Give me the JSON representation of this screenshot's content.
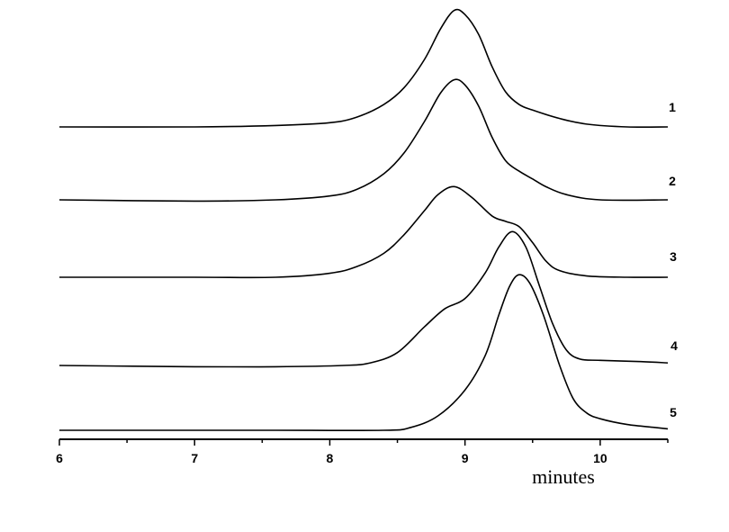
{
  "chart_data": {
    "type": "line",
    "title": "",
    "xlabel": "minutes",
    "ylabel": "",
    "xlim": [
      6,
      10.5
    ],
    "x_ticks": [
      6,
      7,
      8,
      9,
      10
    ],
    "x_ticks_minor": [
      6.5,
      7.5,
      8.5,
      9.5,
      10.5
    ],
    "y_ticks": [],
    "grid": false,
    "legend": "none",
    "y_axis_shown": false,
    "stacked_offset_traces": true,
    "series": [
      {
        "name": "1",
        "color": "#000000",
        "points": [
          [
            6.0,
            1.0
          ],
          [
            7.0,
            1.0
          ],
          [
            7.6,
            1.01
          ],
          [
            8.0,
            1.03
          ],
          [
            8.2,
            1.07
          ],
          [
            8.4,
            1.16
          ],
          [
            8.55,
            1.28
          ],
          [
            8.7,
            1.48
          ],
          [
            8.82,
            1.7
          ],
          [
            8.92,
            1.83
          ],
          [
            9.0,
            1.8
          ],
          [
            9.1,
            1.66
          ],
          [
            9.2,
            1.43
          ],
          [
            9.3,
            1.25
          ],
          [
            9.4,
            1.16
          ],
          [
            9.5,
            1.12
          ],
          [
            9.7,
            1.06
          ],
          [
            9.9,
            1.02
          ],
          [
            10.2,
            1.0
          ],
          [
            10.5,
            1.0
          ]
        ]
      },
      {
        "name": "2",
        "color": "#000000",
        "points": [
          [
            6.0,
            1.0
          ],
          [
            7.0,
            0.99
          ],
          [
            7.6,
            1.0
          ],
          [
            8.0,
            1.03
          ],
          [
            8.2,
            1.08
          ],
          [
            8.4,
            1.2
          ],
          [
            8.55,
            1.36
          ],
          [
            8.7,
            1.6
          ],
          [
            8.82,
            1.82
          ],
          [
            8.92,
            1.92
          ],
          [
            9.0,
            1.88
          ],
          [
            9.1,
            1.72
          ],
          [
            9.2,
            1.48
          ],
          [
            9.3,
            1.3
          ],
          [
            9.4,
            1.22
          ],
          [
            9.5,
            1.16
          ],
          [
            9.6,
            1.1
          ],
          [
            9.75,
            1.04
          ],
          [
            10.0,
            1.0
          ],
          [
            10.5,
            1.0
          ]
        ]
      },
      {
        "name": "3",
        "color": "#000000",
        "points": [
          [
            6.0,
            1.0
          ],
          [
            7.0,
            1.0
          ],
          [
            7.6,
            1.0
          ],
          [
            8.0,
            1.03
          ],
          [
            8.2,
            1.08
          ],
          [
            8.4,
            1.18
          ],
          [
            8.55,
            1.32
          ],
          [
            8.7,
            1.5
          ],
          [
            8.8,
            1.62
          ],
          [
            8.92,
            1.68
          ],
          [
            9.05,
            1.6
          ],
          [
            9.2,
            1.46
          ],
          [
            9.3,
            1.42
          ],
          [
            9.4,
            1.38
          ],
          [
            9.5,
            1.26
          ],
          [
            9.6,
            1.12
          ],
          [
            9.7,
            1.05
          ],
          [
            9.9,
            1.01
          ],
          [
            10.2,
            1.0
          ],
          [
            10.5,
            1.0
          ]
        ]
      },
      {
        "name": "4",
        "color": "#000000",
        "points": [
          [
            6.0,
            1.0
          ],
          [
            7.0,
            0.99
          ],
          [
            7.6,
            0.99
          ],
          [
            8.1,
            1.0
          ],
          [
            8.3,
            1.02
          ],
          [
            8.5,
            1.1
          ],
          [
            8.7,
            1.3
          ],
          [
            8.85,
            1.44
          ],
          [
            9.0,
            1.52
          ],
          [
            9.15,
            1.72
          ],
          [
            9.25,
            1.92
          ],
          [
            9.35,
            2.04
          ],
          [
            9.45,
            1.92
          ],
          [
            9.55,
            1.62
          ],
          [
            9.65,
            1.32
          ],
          [
            9.75,
            1.12
          ],
          [
            9.85,
            1.05
          ],
          [
            10.0,
            1.04
          ],
          [
            10.3,
            1.03
          ],
          [
            10.5,
            1.02
          ]
        ]
      },
      {
        "name": "5",
        "color": "#000000",
        "points": [
          [
            6.0,
            1.0
          ],
          [
            7.0,
            1.0
          ],
          [
            7.6,
            1.0
          ],
          [
            8.4,
            1.0
          ],
          [
            8.6,
            1.02
          ],
          [
            8.8,
            1.1
          ],
          [
            9.0,
            1.28
          ],
          [
            9.15,
            1.52
          ],
          [
            9.25,
            1.8
          ],
          [
            9.33,
            2.0
          ],
          [
            9.4,
            2.08
          ],
          [
            9.48,
            2.02
          ],
          [
            9.58,
            1.8
          ],
          [
            9.7,
            1.45
          ],
          [
            9.8,
            1.22
          ],
          [
            9.9,
            1.12
          ],
          [
            10.0,
            1.08
          ],
          [
            10.2,
            1.04
          ],
          [
            10.4,
            1.02
          ],
          [
            10.5,
            1.01
          ]
        ]
      }
    ]
  }
}
